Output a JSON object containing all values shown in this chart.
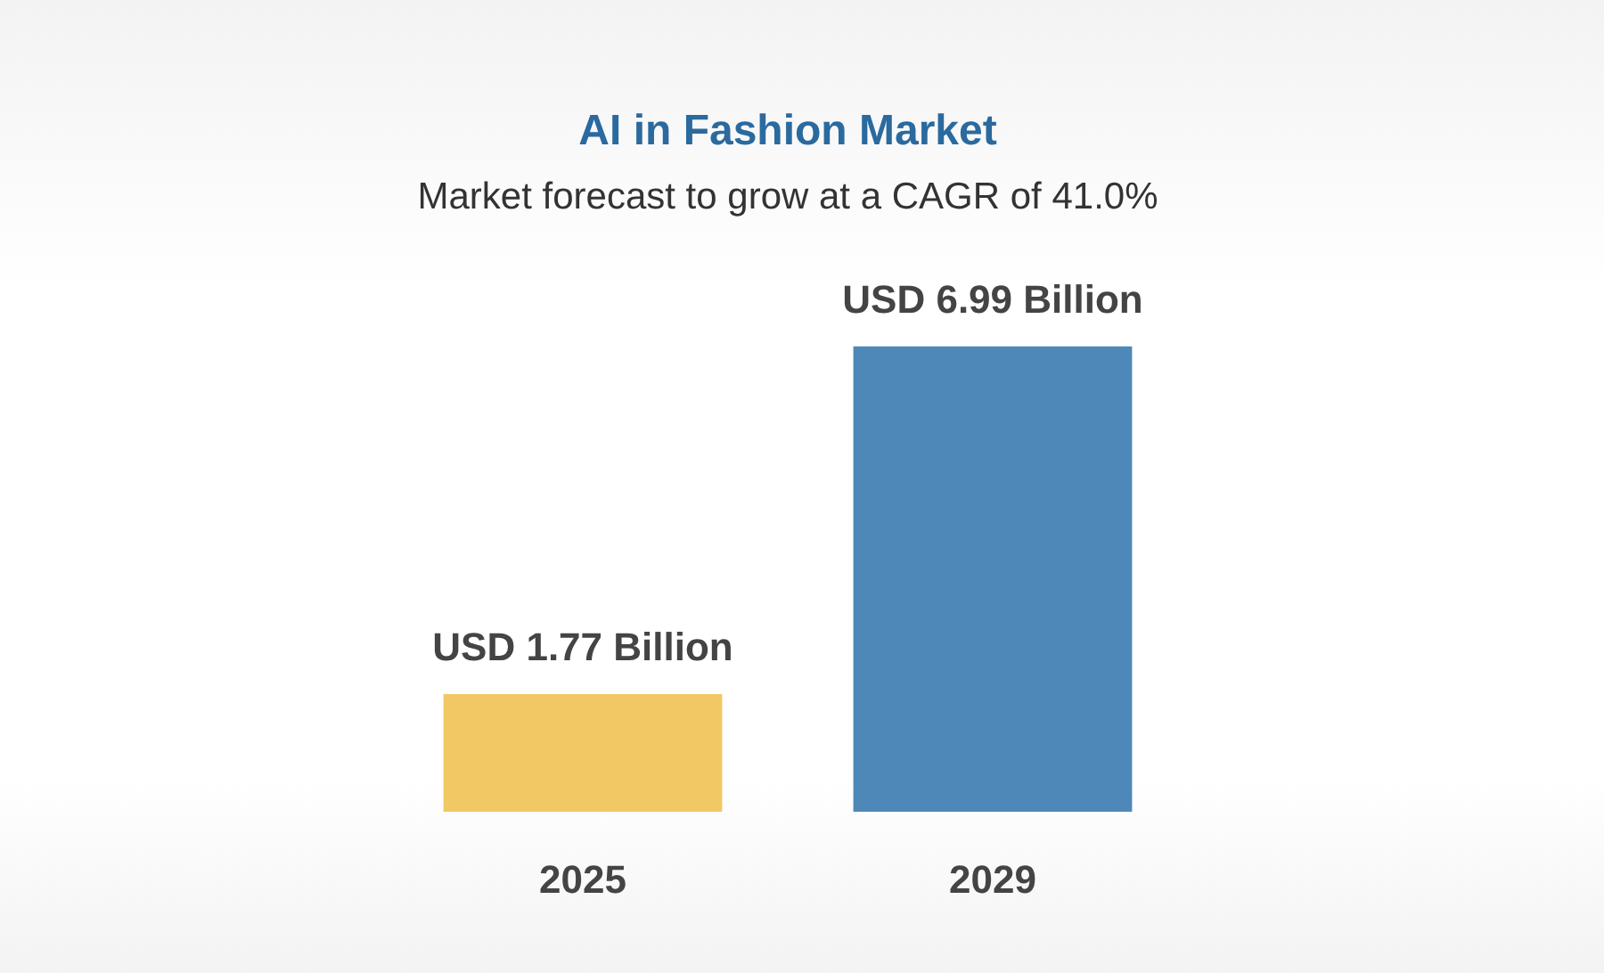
{
  "chart_data": {
    "type": "bar",
    "title": "AI in Fashion Market",
    "subtitle": "Market forecast to grow at a CAGR of 41.0%",
    "categories": [
      "2025",
      "2029"
    ],
    "values": [
      1.77,
      6.99
    ],
    "colors": [
      "#f2c865",
      "#4d88b8"
    ],
    "value_labels": [
      "USD 1.77 Billion",
      "USD 6.99 Billion"
    ]
  }
}
